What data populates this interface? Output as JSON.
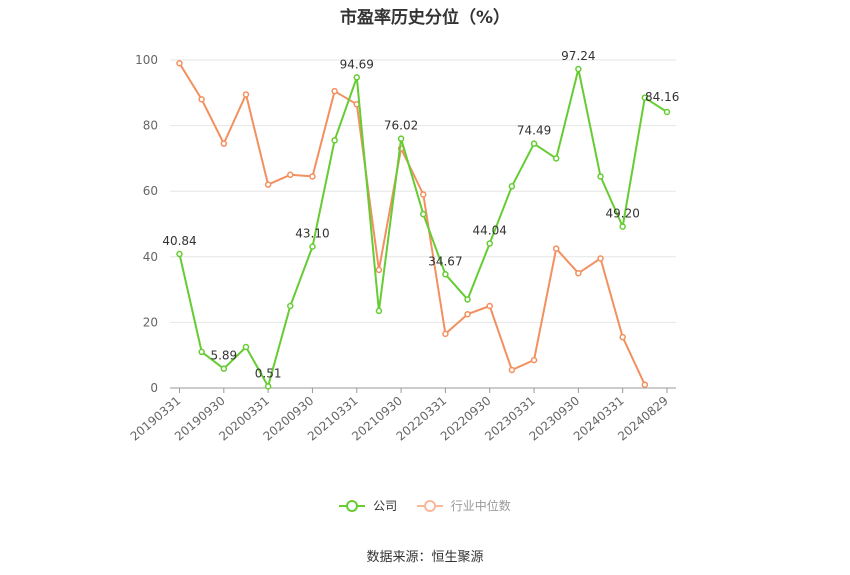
{
  "title": "市盈率历史分位（%）",
  "source_text": "数据来源：恒生聚源",
  "chart_data": {
    "type": "line",
    "title": "市盈率历史分位（%）",
    "x_tick_labels": [
      "20190331",
      "20190930",
      "20200331",
      "20200930",
      "20210331",
      "20210930",
      "20220331",
      "20220930",
      "20230331",
      "20230930",
      "20240331",
      "20240829"
    ],
    "y_ticks": [
      0,
      20,
      40,
      60,
      80,
      100
    ],
    "ylim": [
      0,
      100
    ],
    "grid": true,
    "legend_position": "bottom",
    "series": [
      {
        "name": "公司",
        "color": "#66cc33",
        "values": [
          40.84,
          11,
          5.89,
          12.5,
          0.51,
          25,
          43.1,
          75.5,
          94.69,
          23.5,
          76.02,
          53,
          34.67,
          27,
          44.04,
          61.5,
          74.49,
          70,
          97.24,
          64.5,
          49.2,
          88.5,
          84.16
        ],
        "labels": {
          "0": "40.84",
          "2": "5.89",
          "4": "0.51",
          "6": "43.10",
          "8": "94.69",
          "10": "76.02",
          "12": "34.67",
          "14": "44.04",
          "16": "74.49",
          "18": "97.24",
          "20": "49.20",
          "22": "84.16"
        }
      },
      {
        "name": "行业中位数",
        "color": "#f39060",
        "values": [
          99,
          88,
          74.5,
          89.5,
          62,
          65,
          64.5,
          90.5,
          86.5,
          36,
          73,
          59,
          16.5,
          22.5,
          25,
          5.5,
          8.5,
          42.5,
          35,
          39.5,
          15.5,
          1,
          null
        ]
      }
    ]
  }
}
